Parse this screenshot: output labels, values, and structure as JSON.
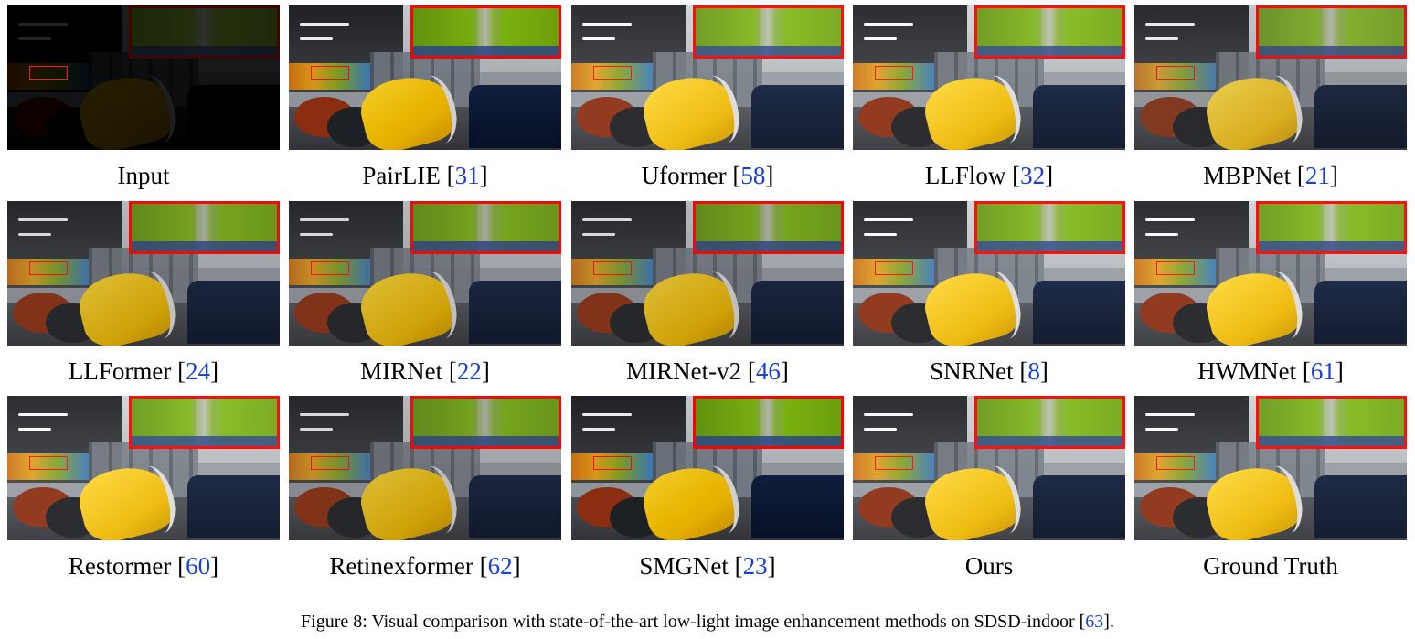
{
  "figure": {
    "caption_text": "Figure 8: Visual comparison with state-of-the-art low-light image enhancement methods on SDSD-indoor [",
    "caption_ref": "63",
    "caption_end": "].",
    "reference_color": "#1a3fd6",
    "highlight_color": "#ff1010"
  },
  "panels": [
    {
      "name": "Input",
      "ref": ""
    },
    {
      "name": "PairLIE [",
      "ref": "31"
    },
    {
      "name": "Uformer [",
      "ref": "58"
    },
    {
      "name": "LLFlow [",
      "ref": "32"
    },
    {
      "name": "MBPNet [",
      "ref": "21"
    },
    {
      "name": "LLFormer [",
      "ref": "24"
    },
    {
      "name": "MIRNet [",
      "ref": "22"
    },
    {
      "name": "MIRNet-v2 [",
      "ref": "46"
    },
    {
      "name": "SNRNet [",
      "ref": "8"
    },
    {
      "name": "HWMNet [",
      "ref": "61"
    },
    {
      "name": "Restormer [",
      "ref": "60"
    },
    {
      "name": "Retinexformer [",
      "ref": "62"
    },
    {
      "name": "SMGNet [",
      "ref": "23"
    },
    {
      "name": "Ours",
      "ref": ""
    },
    {
      "name": "Ground Truth",
      "ref": ""
    }
  ]
}
